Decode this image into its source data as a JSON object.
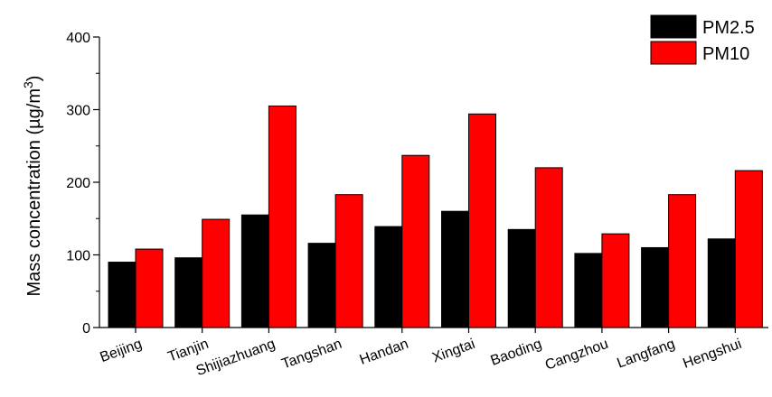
{
  "chart_data": {
    "type": "bar",
    "categories": [
      "Beijing",
      "Tianjin",
      "Shijiazhuang",
      "Tangshan",
      "Handan",
      "Xingtai",
      "Baoding",
      "Cangzhou",
      "Langfang",
      "Hengshui"
    ],
    "series": [
      {
        "name": "PM2.5",
        "color": "#000000",
        "values": [
          90,
          96,
          155,
          116,
          139,
          160,
          135,
          102,
          110,
          122
        ]
      },
      {
        "name": "PM10",
        "color": "#ff0000",
        "values": [
          108,
          149,
          305,
          183,
          237,
          294,
          220,
          129,
          183,
          216
        ]
      }
    ],
    "ylabel": "Mass concentration (µg/m",
    "ylabel_sup": "3",
    "ylabel_close": ")",
    "ylim": [
      0,
      400
    ],
    "yticks": [
      "0",
      "100",
      "200",
      "300",
      "400"
    ],
    "legend_position": "top-right",
    "grid": false
  }
}
